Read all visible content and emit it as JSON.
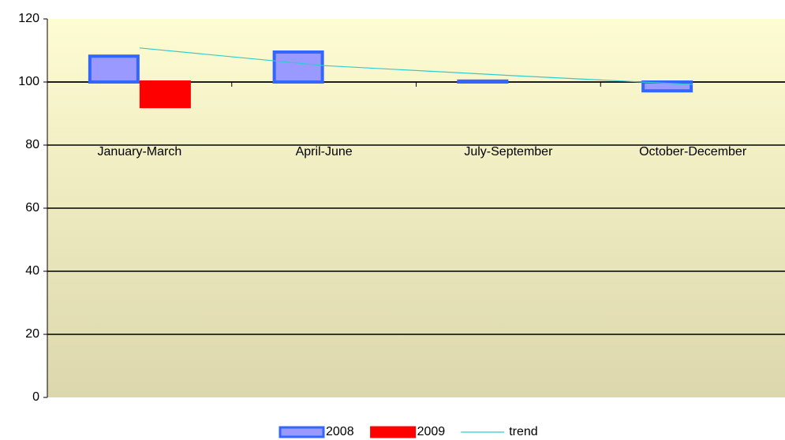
{
  "chart_data": {
    "type": "bar",
    "categories": [
      "January-March",
      "April-June",
      "July-September",
      "October-December"
    ],
    "baseline": 100,
    "series": [
      {
        "name": "2008",
        "color": "#9999ff",
        "edge_color": "#3366ff",
        "values": [
          108.2,
          109.5,
          100.3,
          97.2
        ]
      },
      {
        "name": "2009",
        "color": "#ff0000",
        "edge_color": "#ff0000",
        "values": [
          92.2,
          null,
          null,
          null
        ]
      },
      {
        "name": "trend",
        "type": "line",
        "color": "#33cccc",
        "values": [
          110.8,
          105.2,
          102.1,
          99.2
        ]
      }
    ],
    "ylim": [
      0,
      120
    ],
    "yticks": [
      0,
      20,
      40,
      60,
      80,
      100,
      120
    ],
    "grid": true,
    "legend": "bottom"
  }
}
